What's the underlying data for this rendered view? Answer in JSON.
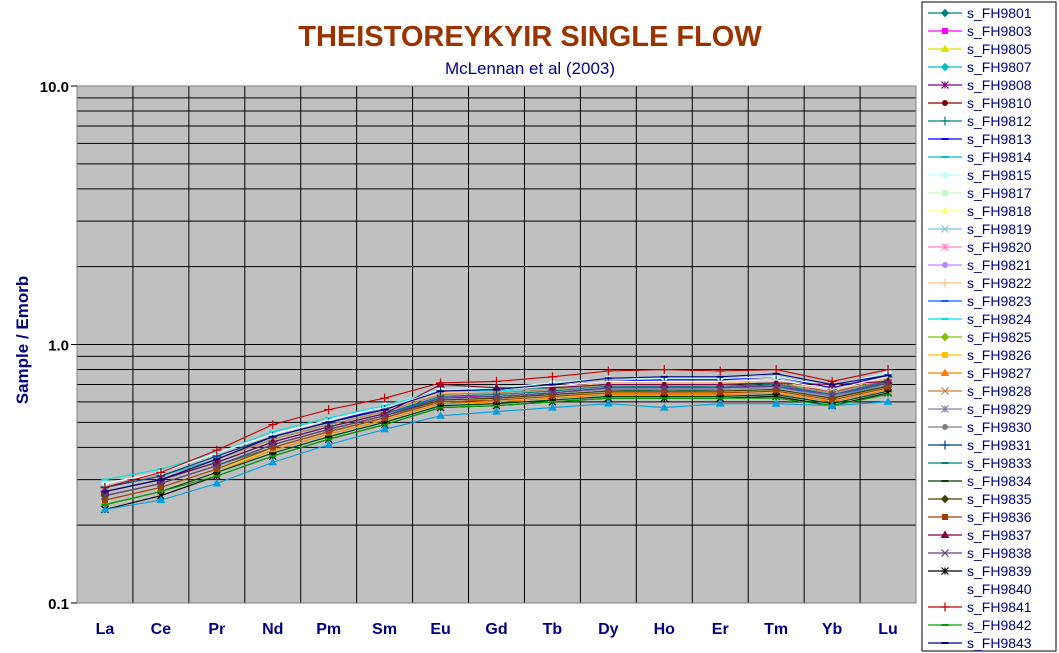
{
  "chart_data": {
    "type": "line",
    "title": "THEISTOREYKYIR SINGLE FLOW",
    "subtitle": "McLennan et al (2003)",
    "xlabel": "",
    "ylabel": "Sample / Emorb",
    "yscale": "log",
    "ylim": [
      0.1,
      10.0
    ],
    "ytick_labels": [
      "10.0",
      "1.0",
      "0.1"
    ],
    "yticks": [
      10.0,
      1.0,
      0.1
    ],
    "grid": true,
    "legend_position": "right",
    "categories": [
      "La",
      "Ce",
      "Pr",
      "Nd",
      "Pm",
      "Sm",
      "Eu",
      "Gd",
      "Tb",
      "Dy",
      "Ho",
      "Er",
      "Tm",
      "Yb",
      "Lu"
    ],
    "series": [
      {
        "name": "s_FH9801",
        "color": "#008080",
        "marker": "diamond",
        "values": [
          0.26,
          0.29,
          0.34,
          0.4,
          0.46,
          0.52,
          0.6,
          0.61,
          0.63,
          0.66,
          0.67,
          0.66,
          0.67,
          0.62,
          0.7
        ]
      },
      {
        "name": "s_FH9803",
        "color": "#ff00ff",
        "marker": "square",
        "values": [
          0.27,
          0.3,
          0.35,
          0.42,
          0.48,
          0.54,
          0.63,
          0.63,
          0.65,
          0.68,
          0.68,
          0.68,
          0.69,
          0.63,
          0.71
        ]
      },
      {
        "name": "s_FH9805",
        "color": "#e0e000",
        "marker": "triangle",
        "values": [
          0.25,
          0.28,
          0.33,
          0.39,
          0.45,
          0.51,
          0.59,
          0.6,
          0.62,
          0.65,
          0.66,
          0.65,
          0.66,
          0.61,
          0.68
        ]
      },
      {
        "name": "s_FH9807",
        "color": "#00c0c0",
        "marker": "diamond",
        "values": [
          0.28,
          0.31,
          0.36,
          0.43,
          0.49,
          0.55,
          0.64,
          0.65,
          0.67,
          0.7,
          0.7,
          0.7,
          0.71,
          0.65,
          0.73
        ]
      },
      {
        "name": "s_FH9808",
        "color": "#800080",
        "marker": "star",
        "values": [
          0.26,
          0.29,
          0.34,
          0.41,
          0.47,
          0.53,
          0.62,
          0.63,
          0.65,
          0.68,
          0.69,
          0.68,
          0.7,
          0.66,
          0.72
        ]
      },
      {
        "name": "s_FH9810",
        "color": "#800000",
        "marker": "circle",
        "values": [
          0.25,
          0.28,
          0.33,
          0.4,
          0.46,
          0.52,
          0.61,
          0.62,
          0.64,
          0.66,
          0.66,
          0.66,
          0.67,
          0.62,
          0.69
        ]
      },
      {
        "name": "s_FH9812",
        "color": "#008080",
        "marker": "plus",
        "values": [
          0.27,
          0.3,
          0.35,
          0.42,
          0.48,
          0.54,
          0.62,
          0.63,
          0.65,
          0.68,
          0.68,
          0.68,
          0.69,
          0.63,
          0.71
        ]
      },
      {
        "name": "s_FH9813",
        "color": "#0000ff",
        "marker": "dash",
        "values": [
          0.28,
          0.31,
          0.37,
          0.44,
          0.5,
          0.57,
          0.66,
          0.67,
          0.69,
          0.72,
          0.73,
          0.73,
          0.75,
          0.68,
          0.76
        ]
      },
      {
        "name": "s_FH9814",
        "color": "#00c0c0",
        "marker": "dash",
        "values": [
          0.24,
          0.27,
          0.32,
          0.38,
          0.44,
          0.5,
          0.58,
          0.59,
          0.61,
          0.63,
          0.63,
          0.63,
          0.64,
          0.59,
          0.66
        ]
      },
      {
        "name": "s_FH9815",
        "color": "#c0ffff",
        "marker": "diamond",
        "values": [
          0.29,
          0.32,
          0.38,
          0.45,
          0.51,
          0.58,
          0.67,
          0.68,
          0.71,
          0.74,
          0.74,
          0.74,
          0.75,
          0.69,
          0.78
        ]
      },
      {
        "name": "s_FH9817",
        "color": "#c0ffc0",
        "marker": "square",
        "values": [
          0.26,
          0.29,
          0.34,
          0.41,
          0.47,
          0.53,
          0.61,
          0.62,
          0.64,
          0.67,
          0.67,
          0.67,
          0.68,
          0.63,
          0.7
        ]
      },
      {
        "name": "s_FH9818",
        "color": "#ffff80",
        "marker": "triangle",
        "values": [
          0.25,
          0.28,
          0.33,
          0.4,
          0.46,
          0.52,
          0.6,
          0.61,
          0.63,
          0.66,
          0.66,
          0.66,
          0.67,
          0.62,
          0.69
        ]
      },
      {
        "name": "s_FH9819",
        "color": "#80c0e0",
        "marker": "cross",
        "values": [
          0.27,
          0.3,
          0.35,
          0.42,
          0.48,
          0.54,
          0.63,
          0.64,
          0.66,
          0.69,
          0.69,
          0.69,
          0.7,
          0.64,
          0.72
        ]
      },
      {
        "name": "s_FH9820",
        "color": "#ff80c0",
        "marker": "star",
        "values": [
          0.26,
          0.29,
          0.34,
          0.41,
          0.47,
          0.53,
          0.62,
          0.63,
          0.65,
          0.68,
          0.68,
          0.68,
          0.69,
          0.64,
          0.71
        ]
      },
      {
        "name": "s_FH9821",
        "color": "#c080ff",
        "marker": "circle",
        "values": [
          0.25,
          0.28,
          0.33,
          0.4,
          0.46,
          0.52,
          0.6,
          0.61,
          0.63,
          0.66,
          0.66,
          0.66,
          0.67,
          0.62,
          0.69
        ]
      },
      {
        "name": "s_FH9822",
        "color": "#ffc080",
        "marker": "plus",
        "values": [
          0.28,
          0.31,
          0.37,
          0.44,
          0.5,
          0.56,
          0.65,
          0.66,
          0.68,
          0.71,
          0.71,
          0.71,
          0.72,
          0.66,
          0.74
        ]
      },
      {
        "name": "s_FH9823",
        "color": "#0060ff",
        "marker": "dash",
        "values": [
          0.27,
          0.3,
          0.35,
          0.42,
          0.48,
          0.54,
          0.62,
          0.63,
          0.65,
          0.68,
          0.68,
          0.68,
          0.69,
          0.63,
          0.71
        ]
      },
      {
        "name": "s_FH9824",
        "color": "#00e0e0",
        "marker": "dash",
        "values": [
          0.3,
          0.33,
          0.38,
          0.46,
          0.52,
          0.58,
          0.66,
          0.66,
          0.68,
          0.7,
          0.7,
          0.7,
          0.71,
          0.65,
          0.73
        ]
      },
      {
        "name": "s_FH9825",
        "color": "#80c000",
        "marker": "diamond",
        "values": [
          0.26,
          0.29,
          0.34,
          0.41,
          0.47,
          0.53,
          0.61,
          0.62,
          0.64,
          0.66,
          0.66,
          0.66,
          0.67,
          0.62,
          0.69
        ]
      },
      {
        "name": "s_FH9826",
        "color": "#ffc000",
        "marker": "square",
        "values": [
          0.25,
          0.28,
          0.33,
          0.4,
          0.46,
          0.52,
          0.6,
          0.61,
          0.63,
          0.65,
          0.65,
          0.65,
          0.66,
          0.61,
          0.68
        ]
      },
      {
        "name": "s_FH9827",
        "color": "#ff8000",
        "marker": "triangle",
        "values": [
          0.24,
          0.27,
          0.32,
          0.39,
          0.45,
          0.51,
          0.59,
          0.6,
          0.62,
          0.64,
          0.64,
          0.64,
          0.65,
          0.6,
          0.67
        ]
      },
      {
        "name": "s_FH9828",
        "color": "#c08040",
        "marker": "cross",
        "values": [
          0.27,
          0.3,
          0.36,
          0.43,
          0.49,
          0.55,
          0.64,
          0.65,
          0.67,
          0.7,
          0.7,
          0.7,
          0.71,
          0.65,
          0.73
        ]
      },
      {
        "name": "s_FH9829",
        "color": "#8080a0",
        "marker": "star",
        "values": [
          0.26,
          0.29,
          0.34,
          0.41,
          0.47,
          0.53,
          0.62,
          0.63,
          0.65,
          0.67,
          0.67,
          0.67,
          0.68,
          0.63,
          0.7
        ]
      },
      {
        "name": "s_FH9830",
        "color": "#808080",
        "marker": "circle",
        "values": [
          0.25,
          0.28,
          0.33,
          0.4,
          0.46,
          0.52,
          0.61,
          0.62,
          0.64,
          0.66,
          0.66,
          0.66,
          0.67,
          0.62,
          0.69
        ]
      },
      {
        "name": "s_FH9831",
        "color": "#004080",
        "marker": "plus",
        "values": [
          0.28,
          0.31,
          0.37,
          0.44,
          0.5,
          0.56,
          0.66,
          0.67,
          0.69,
          0.72,
          0.72,
          0.72,
          0.73,
          0.67,
          0.75
        ]
      },
      {
        "name": "s_FH9833",
        "color": "#008080",
        "marker": "dash",
        "values": [
          0.27,
          0.3,
          0.35,
          0.42,
          0.48,
          0.54,
          0.63,
          0.64,
          0.66,
          0.69,
          0.69,
          0.69,
          0.7,
          0.64,
          0.72
        ]
      },
      {
        "name": "s_FH9834",
        "color": "#004000",
        "marker": "dash",
        "values": [
          0.24,
          0.27,
          0.32,
          0.38,
          0.44,
          0.5,
          0.58,
          0.59,
          0.61,
          0.63,
          0.63,
          0.63,
          0.64,
          0.59,
          0.66
        ]
      },
      {
        "name": "s_FH9835",
        "color": "#404000",
        "marker": "diamond",
        "values": [
          0.26,
          0.29,
          0.34,
          0.41,
          0.47,
          0.53,
          0.61,
          0.62,
          0.64,
          0.66,
          0.66,
          0.66,
          0.67,
          0.62,
          0.69
        ]
      },
      {
        "name": "s_FH9836",
        "color": "#a04000",
        "marker": "square",
        "values": [
          0.25,
          0.28,
          0.33,
          0.4,
          0.46,
          0.52,
          0.6,
          0.61,
          0.63,
          0.65,
          0.65,
          0.65,
          0.66,
          0.61,
          0.68
        ]
      },
      {
        "name": "s_FH9837",
        "color": "#800040",
        "marker": "triangle",
        "values": [
          0.27,
          0.3,
          0.35,
          0.42,
          0.48,
          0.54,
          0.7,
          0.68,
          0.68,
          0.7,
          0.7,
          0.7,
          0.71,
          0.7,
          0.72
        ]
      },
      {
        "name": "s_FH9838",
        "color": "#604080",
        "marker": "cross",
        "values": [
          0.26,
          0.29,
          0.34,
          0.41,
          0.47,
          0.53,
          0.62,
          0.63,
          0.65,
          0.68,
          0.68,
          0.68,
          0.69,
          0.64,
          0.71
        ]
      },
      {
        "name": "s_FH9839",
        "color": "#000000",
        "marker": "star",
        "values": [
          0.23,
          0.26,
          0.31,
          0.37,
          0.43,
          0.49,
          0.57,
          0.58,
          0.6,
          0.62,
          0.62,
          0.62,
          0.63,
          0.58,
          0.65
        ]
      },
      {
        "name": "s_FH9840",
        "color": "#ffffff",
        "marker": "none",
        "values": [
          0.29,
          0.32,
          0.38,
          0.45,
          0.51,
          0.57,
          0.66,
          0.67,
          0.69,
          0.72,
          0.72,
          0.72,
          0.73,
          0.67,
          0.75
        ]
      },
      {
        "name": "s_FH9841",
        "color": "#c00000",
        "marker": "plus",
        "values": [
          0.28,
          0.32,
          0.39,
          0.49,
          0.56,
          0.62,
          0.71,
          0.72,
          0.75,
          0.79,
          0.8,
          0.79,
          0.8,
          0.72,
          0.8
        ]
      },
      {
        "name": "s_FH9842",
        "color": "#00a000",
        "marker": "dash",
        "values": [
          0.24,
          0.27,
          0.31,
          0.37,
          0.43,
          0.49,
          0.57,
          0.58,
          0.6,
          0.62,
          0.62,
          0.62,
          0.62,
          0.58,
          0.64
        ]
      },
      {
        "name": "s_FH9843",
        "color": "#000080",
        "marker": "dash",
        "values": [
          0.27,
          0.3,
          0.36,
          0.44,
          0.5,
          0.56,
          0.66,
          0.67,
          0.7,
          0.74,
          0.75,
          0.75,
          0.77,
          0.7,
          0.76
        ]
      },
      {
        "name": "",
        "color": "#00a0e0",
        "marker": "triangle",
        "values": [
          0.23,
          0.25,
          0.29,
          0.35,
          0.41,
          0.47,
          0.53,
          0.55,
          0.57,
          0.59,
          0.57,
          0.59,
          0.59,
          0.58,
          0.6
        ]
      }
    ]
  },
  "colors": {
    "title": "#993300",
    "subtitle": "#000080",
    "axis_label": "#000080",
    "tick_label": "#000080",
    "plot_background": "#c0c0c0",
    "grid": "#000000"
  }
}
